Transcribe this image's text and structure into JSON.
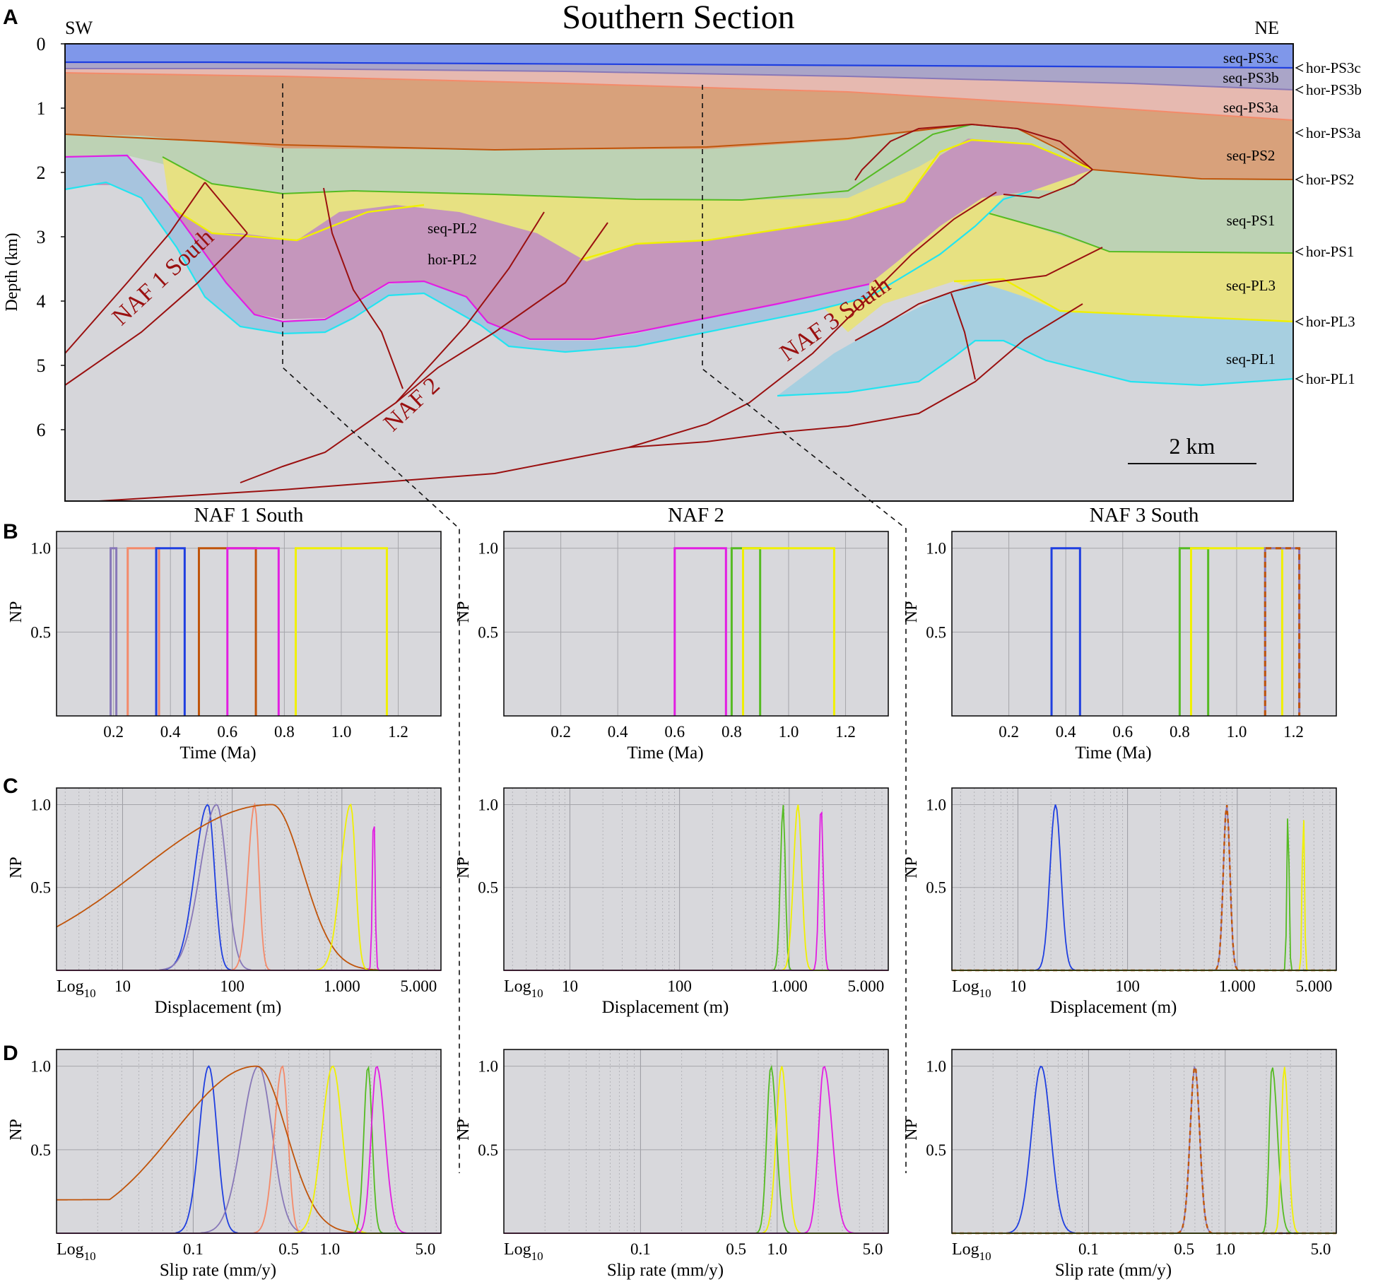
{
  "section": {
    "title": "Southern Section",
    "sw_label": "SW",
    "ne_label": "NE",
    "y_axis_label": "Depth (km)",
    "depth_ticks": [
      "0",
      "1",
      "2",
      "3",
      "4",
      "5",
      "6"
    ],
    "scale_bar_label": "2 km",
    "sequences": [
      "seq-PS3c",
      "seq-PS3b",
      "seq-PS3a",
      "seq-PS2",
      "seq-PS1",
      "seq-PL3",
      "seq-PL1"
    ],
    "horizons": [
      "hor-PS3c",
      "hor-PS3b",
      "hor-PS3a",
      "hor-PS2",
      "hor-PS1",
      "hor-PL3",
      "hor-PL1"
    ],
    "inner_labels": {
      "seq": "seq-PL2",
      "hor": "hor-PL2"
    },
    "fault_labels": [
      "NAF 1 South",
      "NAF 2",
      "NAF 3 South"
    ]
  },
  "panel_letters": [
    "A",
    "B",
    "C",
    "D"
  ],
  "colors": {
    "PS3c": "#1f3fe0",
    "PS3b": "#8878b8",
    "PS3a": "#f48a6a",
    "PS2": "#c0540a",
    "PS1": "#55bb22",
    "PL3": "#f0f000",
    "PL2": "#e21ee2",
    "PL1": "#22e4f0",
    "fault": "#9a1010",
    "panel_bg": "#d8d8dc"
  },
  "chart_data": [
    {
      "id": "B",
      "type": "line",
      "ylabel": "NP",
      "xlabel": "Time (Ma)",
      "xticks": [
        "0.2",
        "0.4",
        "0.6",
        "0.8",
        "1.0",
        "1.2"
      ],
      "yticks": [
        "0.5",
        "1.0"
      ],
      "xlim": [
        0,
        1.35
      ],
      "ylim": [
        0,
        1.1
      ],
      "columns": [
        {
          "title": "NAF 1 South",
          "intervals": [
            {
              "horizon": "PS3b",
              "from": 0.19,
              "to": 0.21
            },
            {
              "horizon": "PS3a",
              "from": 0.25,
              "to": 0.36
            },
            {
              "horizon": "PS3c",
              "from": 0.35,
              "to": 0.45
            },
            {
              "horizon": "PS2",
              "from": 0.5,
              "to": 0.7
            },
            {
              "horizon": "PL2",
              "from": 0.6,
              "to": 0.78
            },
            {
              "horizon": "PL3",
              "from": 0.84,
              "to": 1.16
            }
          ]
        },
        {
          "title": "NAF 2",
          "intervals": [
            {
              "horizon": "PL2",
              "from": 0.6,
              "to": 0.78
            },
            {
              "horizon": "PS1",
              "from": 0.8,
              "to": 0.9
            },
            {
              "horizon": "PL3",
              "from": 0.84,
              "to": 1.16
            }
          ]
        },
        {
          "title": "NAF 3 South",
          "intervals": [
            {
              "horizon": "PS3c",
              "from": 0.35,
              "to": 0.45
            },
            {
              "horizon": "PS1",
              "from": 0.8,
              "to": 0.9
            },
            {
              "horizon": "PL3",
              "from": 0.84,
              "to": 1.16
            },
            {
              "horizon": "PS3b",
              "from": 1.1,
              "to": 1.22
            },
            {
              "horizon": "PS2",
              "from": 1.1,
              "to": 1.22,
              "dashed": true
            }
          ]
        }
      ]
    },
    {
      "id": "C",
      "type": "line",
      "ylabel": "NP",
      "xlabel": "Displacement (m)",
      "xscale": "log10",
      "log_label": "Log10",
      "xticks": [
        "10",
        "100",
        "1.000",
        "5.000"
      ],
      "yticks": [
        "0.5",
        "1.0"
      ],
      "xlim": [
        2.5,
        8000
      ],
      "ylim": [
        0,
        1.1
      ],
      "columns": [
        {
          "title": "NAF 1 South",
          "curves": [
            {
              "horizon": "PS3c",
              "peak": 60,
              "left": 0.12,
              "right": 0.06
            },
            {
              "horizon": "PS3b",
              "peak": 72,
              "left": 0.15,
              "right": 0.09
            },
            {
              "horizon": "PS3a",
              "peak": 160,
              "left": 0.06,
              "right": 0.04
            },
            {
              "horizon": "PS2",
              "peak": 230,
              "left": 1.2,
              "right": 0.28,
              "floor": 0.17
            },
            {
              "horizon": "PL3",
              "peak": 1200,
              "left": 0.09,
              "right": 0.045
            },
            {
              "horizon": "PL2",
              "peak": 1950,
              "left": 0.012,
              "right": 0.012
            }
          ]
        },
        {
          "title": "NAF 2",
          "curves": [
            {
              "horizon": "PS1",
              "peak": 880,
              "left": 0.025,
              "right": 0.02
            },
            {
              "horizon": "PL3",
              "peak": 1200,
              "left": 0.04,
              "right": 0.035
            },
            {
              "horizon": "PL2",
              "peak": 1950,
              "left": 0.02,
              "right": 0.02
            }
          ]
        },
        {
          "title": "NAF 3 South",
          "curves": [
            {
              "horizon": "PS3c",
              "peak": 22,
              "left": 0.05,
              "right": 0.05
            },
            {
              "horizon": "PS3b",
              "peak": 800,
              "left": 0.03,
              "right": 0.03
            },
            {
              "horizon": "PS2",
              "peak": 800,
              "left": 0.03,
              "right": 0.03,
              "dashed": true
            },
            {
              "horizon": "PS1",
              "peak": 2900,
              "left": 0.01,
              "right": 0.01
            },
            {
              "horizon": "PL3",
              "peak": 4000,
              "left": 0.01,
              "right": 0.01
            }
          ]
        }
      ]
    },
    {
      "id": "D",
      "type": "line",
      "ylabel": "NP",
      "xlabel": "Slip rate (mm/y)",
      "xscale": "log10",
      "log_label": "Log10",
      "xticks": [
        "0.1",
        "0.5",
        "1.0",
        "5.0"
      ],
      "yticks": [
        "0.5",
        "1.0"
      ],
      "xlim": [
        0.01,
        6.5
      ],
      "ylim": [
        0,
        1.1
      ],
      "columns": [
        {
          "title": "NAF 1 South",
          "curves": [
            {
              "horizon": "PS3c",
              "peak": 0.13,
              "left": 0.07,
              "right": 0.06
            },
            {
              "horizon": "PS3b",
              "peak": 0.3,
              "left": 0.12,
              "right": 0.1
            },
            {
              "horizon": "PS3a",
              "peak": 0.45,
              "left": 0.06,
              "right": 0.04
            },
            {
              "horizon": "PS2",
              "peak": 0.29,
              "left": 0.6,
              "right": 0.22,
              "floor": 0.2
            },
            {
              "horizon": "PL3",
              "peak": 1.05,
              "left": 0.08,
              "right": 0.07
            },
            {
              "horizon": "PS1",
              "peak": 1.9,
              "left": 0.03,
              "right": 0.03
            },
            {
              "horizon": "PL2",
              "peak": 2.2,
              "left": 0.04,
              "right": 0.06
            }
          ]
        },
        {
          "title": "NAF 2",
          "curves": [
            {
              "horizon": "PS1",
              "peak": 0.9,
              "left": 0.03,
              "right": 0.04
            },
            {
              "horizon": "PL3",
              "peak": 1.08,
              "left": 0.04,
              "right": 0.04
            },
            {
              "horizon": "PL2",
              "peak": 2.2,
              "left": 0.04,
              "right": 0.06
            }
          ]
        },
        {
          "title": "NAF 3 South",
          "curves": [
            {
              "horizon": "PS3c",
              "peak": 0.045,
              "left": 0.07,
              "right": 0.07
            },
            {
              "horizon": "PS3b",
              "peak": 0.6,
              "left": 0.035,
              "right": 0.035
            },
            {
              "horizon": "PS2",
              "peak": 0.6,
              "left": 0.035,
              "right": 0.035,
              "dashed": true
            },
            {
              "horizon": "PS1",
              "peak": 2.2,
              "left": 0.02,
              "right": 0.04
            },
            {
              "horizon": "PL3",
              "peak": 2.7,
              "left": 0.02,
              "right": 0.03
            }
          ]
        }
      ]
    }
  ]
}
